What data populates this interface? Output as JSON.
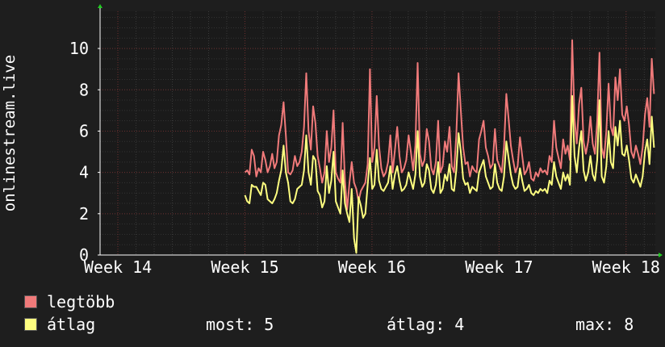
{
  "chart_data": {
    "type": "line",
    "ylabel": "onlinestream.live",
    "x_ticks": [
      "Week 14",
      "Week 15",
      "Week 16",
      "Week 17",
      "Week 18"
    ],
    "y_ticks": [
      0,
      2,
      4,
      6,
      8,
      10
    ],
    "ylim": [
      0,
      11.8
    ],
    "xlim_weeks": [
      13.86,
      18.23
    ],
    "grid": true,
    "series": [
      {
        "name": "legtöbb",
        "color": "#f07a7a",
        "x_start_week": 15.0,
        "x_end_week": 18.22,
        "values": [
          4.0,
          4.1,
          3.9,
          5.1,
          4.8,
          3.8,
          4.2,
          4.0,
          5.0,
          4.6,
          4.0,
          4.3,
          4.9,
          4.2,
          4.5,
          5.8,
          6.3,
          7.4,
          5.8,
          4.0,
          3.9,
          4.1,
          4.8,
          4.3,
          4.5,
          5.0,
          6.2,
          8.8,
          6.0,
          5.1,
          7.2,
          6.4,
          4.8,
          4.2,
          3.5,
          4.0,
          6.0,
          4.5,
          5.2,
          7.0,
          4.0,
          3.7,
          3.5,
          6.4,
          3.6,
          2.2,
          3.5,
          4.5,
          3.5,
          3.2,
          2.6,
          3.1,
          3.3,
          3.5,
          4.4,
          9.0,
          4.5,
          5.2,
          7.7,
          5.3,
          4.2,
          3.8,
          4.0,
          4.5,
          5.8,
          4.0,
          5.1,
          6.2,
          4.8,
          4.0,
          4.2,
          4.6,
          5.8,
          5.0,
          4.1,
          5.3,
          9.3,
          4.9,
          4.3,
          4.6,
          6.1,
          5.5,
          4.2,
          3.9,
          4.5,
          6.5,
          4.0,
          4.3,
          5.5,
          5.0,
          6.2,
          4.3,
          4.0,
          5.8,
          8.8,
          7.0,
          5.2,
          4.4,
          4.5,
          3.8,
          4.3,
          4.1,
          4.0,
          5.6,
          6.0,
          6.5,
          5.2,
          4.8,
          4.2,
          4.4,
          6.1,
          4.6,
          4.3,
          4.0,
          5.2,
          7.8,
          6.6,
          5.3,
          4.6,
          4.0,
          4.3,
          5.7,
          4.8,
          3.9,
          4.1,
          4.5,
          3.7,
          3.6,
          4.0,
          3.8,
          4.2,
          4.0,
          4.1,
          3.9,
          4.8,
          4.5,
          6.5,
          5.2,
          4.7,
          4.2,
          5.6,
          4.9,
          5.3,
          4.6,
          10.4,
          6.6,
          5.4,
          7.3,
          8.1,
          5.5,
          4.9,
          5.5,
          6.7,
          5.4,
          4.9,
          6.5,
          9.8,
          5.2,
          4.7,
          6.0,
          8.3,
          6.2,
          5.8,
          8.6,
          7.5,
          9.0,
          6.8,
          6.5,
          7.2,
          6.3,
          5.0,
          4.7,
          5.3,
          4.9,
          4.4,
          5.2,
          6.8,
          7.6,
          6.2,
          9.5,
          7.8
        ]
      },
      {
        "name": "átlag",
        "color": "#ffff80",
        "x_start_week": 15.0,
        "x_end_week": 18.22,
        "values": [
          2.9,
          2.6,
          2.5,
          3.4,
          3.3,
          3.3,
          3.1,
          2.9,
          3.5,
          3.4,
          2.7,
          2.6,
          2.5,
          2.7,
          3.0,
          3.6,
          4.1,
          5.3,
          4.0,
          3.5,
          2.6,
          2.5,
          2.7,
          3.2,
          3.3,
          3.4,
          4.1,
          5.8,
          4.0,
          3.4,
          4.8,
          4.6,
          3.1,
          2.9,
          2.3,
          2.6,
          4.3,
          3.0,
          3.6,
          5.0,
          2.6,
          2.3,
          2.0,
          4.1,
          2.5,
          2.0,
          1.6,
          3.2,
          0.8,
          0.1,
          2.8,
          2.4,
          1.8,
          2.0,
          3.4,
          4.7,
          3.2,
          3.4,
          5.1,
          3.6,
          3.2,
          3.1,
          3.3,
          3.5,
          4.3,
          3.2,
          3.9,
          4.3,
          3.6,
          3.1,
          3.2,
          3.4,
          4.0,
          3.6,
          3.2,
          3.9,
          6.0,
          3.8,
          3.3,
          3.5,
          4.4,
          4.1,
          3.2,
          3.0,
          3.4,
          4.5,
          3.0,
          3.2,
          3.9,
          3.6,
          4.4,
          3.2,
          3.1,
          4.1,
          5.9,
          5.0,
          3.7,
          3.4,
          3.5,
          3.0,
          3.3,
          3.2,
          3.1,
          4.0,
          4.3,
          4.6,
          3.8,
          3.5,
          3.2,
          3.3,
          4.4,
          3.5,
          3.2,
          3.1,
          3.8,
          5.5,
          4.7,
          3.9,
          3.4,
          3.2,
          3.3,
          4.2,
          3.6,
          3.1,
          3.2,
          3.4,
          3.0,
          2.9,
          3.1,
          3.0,
          3.2,
          3.1,
          3.2,
          3.0,
          3.6,
          3.4,
          4.5,
          3.8,
          3.5,
          3.2,
          4.0,
          3.6,
          3.9,
          3.4,
          7.7,
          4.8,
          4.0,
          5.2,
          6.0,
          4.1,
          3.6,
          4.0,
          4.8,
          3.9,
          3.6,
          4.6,
          7.5,
          3.8,
          3.5,
          4.3,
          6.0,
          4.5,
          4.2,
          6.2,
          5.3,
          6.5,
          4.9,
          4.8,
          5.3,
          4.6,
          3.7,
          3.5,
          3.9,
          3.6,
          3.3,
          3.8,
          5.0,
          5.6,
          4.4,
          6.7,
          5.2
        ]
      }
    ]
  },
  "legend": {
    "max_label": "legtöbb",
    "avg_label": "átlag",
    "stats": {
      "most": "most: 5",
      "atlag": "átlag: 4",
      "max": "max: 8"
    }
  }
}
